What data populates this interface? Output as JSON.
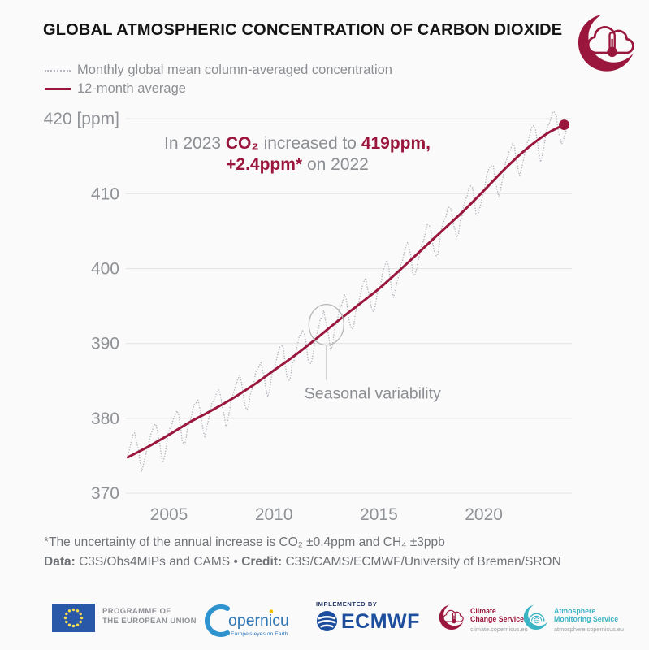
{
  "header": {
    "title": "GLOBAL ATMOSPHERIC CONCENTRATION OF CARBON DIOXIDE"
  },
  "legend": {
    "items": [
      {
        "label": "Monthly global mean column-averaged concentration",
        "style": "dotted"
      },
      {
        "label": "12-month average",
        "style": "solid"
      }
    ]
  },
  "annotation": {
    "lines": [
      [
        {
          "t": "In 2023 ",
          "c": "g"
        },
        {
          "t": "CO₂",
          "c": "r"
        },
        {
          "t": " increased to ",
          "c": "g"
        },
        {
          "t": "419ppm,",
          "c": "r"
        }
      ],
      [
        {
          "t": "+2.4ppm*",
          "c": "r"
        },
        {
          "t": " on 2022",
          "c": "g"
        }
      ]
    ]
  },
  "footnotes": {
    "line1": "*The uncertainty of the annual increase is CO₂ ±0.4ppm and CH₄ ±3ppb",
    "line2_segments": [
      {
        "t": "Data:",
        "c": "b"
      },
      {
        "t": " C3S/Obs4MIPs and CAMS • ",
        "c": "n"
      },
      {
        "t": "Credit:",
        "c": "b"
      },
      {
        "t": " C3S/CAMS/ECMWF/University of Bremen/SRON",
        "c": "n"
      }
    ]
  },
  "footer": {
    "eu": {
      "line1": "PROGRAMME OF",
      "line2": "THE EUROPEAN UNION"
    },
    "copernicus": {
      "wordmark": "opernicus",
      "subtitle": "Europe's eyes on Earth"
    },
    "ecmwf": {
      "implemented_by": "IMPLEMENTED BY",
      "name": "ECMWF"
    },
    "climate_change_service": {
      "line1": "Climate",
      "line2": "Change Service",
      "url": "climate.copernicus.eu"
    },
    "atmosphere_monitoring_service": {
      "line1": "Atmosphere",
      "line2": "Monitoring Service",
      "url": "atmosphere.copernicus.eu"
    }
  },
  "colors": {
    "crimson": "#9a163d",
    "monthly_line": "#b4b7be",
    "grid": "#e5e4e4",
    "tick_text": "#8f9296",
    "gray_text": "#8b8e92",
    "teal": "#3ab3c4",
    "eu_blue": "#2a58a8",
    "copernicus_blue": "#3077b5",
    "ecmwf_blue": "#1c4e9d",
    "star_yellow": "#fadd4b",
    "background": "#fbfafa"
  },
  "chart_data": {
    "type": "line",
    "title": "Global atmospheric concentration of carbon dioxide",
    "ylabel": "ppm",
    "ylim": [
      368,
      422
    ],
    "x_range": [
      2003,
      2024
    ],
    "grid": "horizontal gridlines only",
    "legend_position": "top-left",
    "x_ticks": [
      2005,
      2010,
      2015,
      2020
    ],
    "y_ticks": [
      370,
      380,
      390,
      400,
      410,
      420
    ],
    "y_tick_labels": [
      "370",
      "380",
      "390",
      "400",
      "410",
      "420 [ppm]"
    ],
    "series": [
      {
        "name": "12-month average",
        "style": "solid smooth line",
        "color": "#9a163d",
        "points": [
          [
            2003.04,
            374.8
          ],
          [
            2004,
            376.2
          ],
          [
            2005,
            377.8
          ],
          [
            2006,
            379.5
          ],
          [
            2007,
            381.0
          ],
          [
            2008,
            382.6
          ],
          [
            2009,
            384.4
          ],
          [
            2010,
            386.4
          ],
          [
            2011,
            388.4
          ],
          [
            2012,
            390.6
          ],
          [
            2013,
            392.9
          ],
          [
            2014,
            395.1
          ],
          [
            2015,
            397.3
          ],
          [
            2016,
            399.8
          ],
          [
            2017,
            402.4
          ],
          [
            2018,
            405.0
          ],
          [
            2019,
            407.6
          ],
          [
            2020,
            410.4
          ],
          [
            2021,
            413.3
          ],
          [
            2022,
            415.9
          ],
          [
            2023,
            418.0
          ],
          [
            2023.83,
            419.2
          ]
        ]
      },
      {
        "name": "Monthly global mean column-averaged concentration",
        "style": "dotted line",
        "color": "#b4b7be",
        "construction": "12-month average plus monthly seasonal offsets (Jan..Dec)",
        "monthly_seasonal_offsets": [
          0.6,
          1.2,
          1.8,
          2.3,
          2.5,
          1.6,
          0.0,
          -1.8,
          -2.8,
          -2.3,
          -1.2,
          -0.2
        ],
        "months_span": [
          "2003-01",
          "2023-12"
        ]
      }
    ],
    "end_marker": {
      "x": 2023.83,
      "y": 419.2
    },
    "callout": {
      "label": "Seasonal variability",
      "target_x": 2012.5,
      "target_y": 392.5
    },
    "headline_values": {
      "co2_2023_ppm": 419,
      "increase_on_2022_ppm": 2.4
    }
  }
}
